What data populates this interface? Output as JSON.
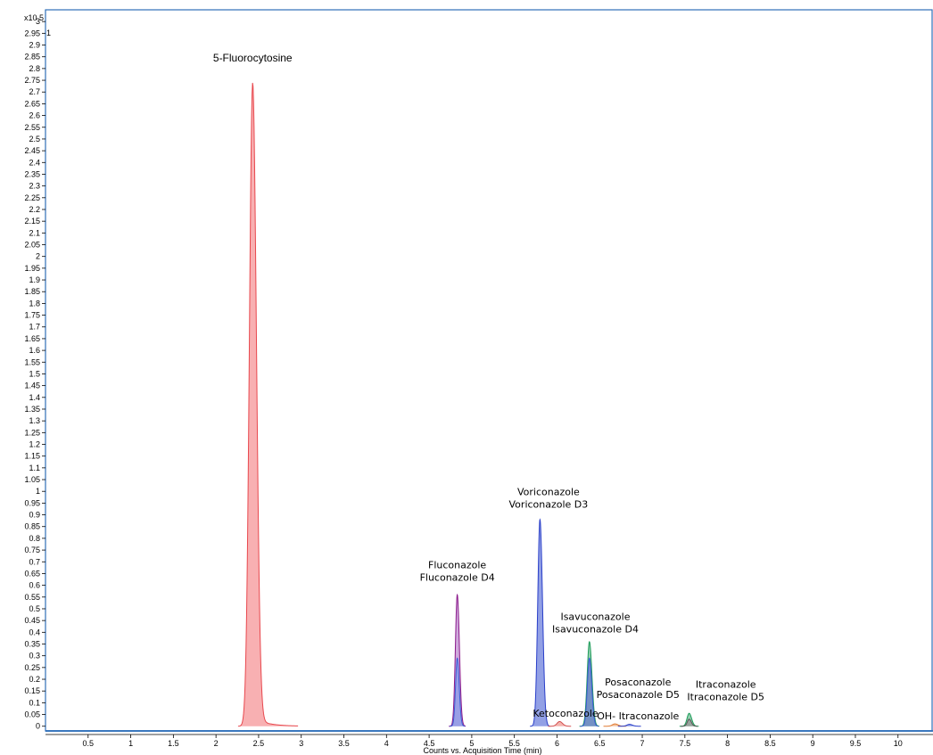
{
  "chart_data": {
    "type": "area",
    "xlabel": "Counts vs. Acquisition Time (min)",
    "ylabel": "",
    "y_multiplier_label": "x10 5",
    "y_corner_label": "1",
    "xlim": [
      0.0,
      10.4
    ],
    "ylim": [
      -0.02,
      3.05
    ],
    "x_ticks": [
      "0.5",
      "1",
      "1.5",
      "2",
      "2.5",
      "3",
      "3.5",
      "4",
      "4.5",
      "5",
      "5.5",
      "6",
      "6.5",
      "7",
      "7.5",
      "8",
      "8.5",
      "9",
      "9.5",
      "10"
    ],
    "y_ticks": [
      "0",
      "0.05",
      "0.1",
      "0.15",
      "0.2",
      "0.25",
      "0.3",
      "0.35",
      "0.4",
      "0.45",
      "0.5",
      "0.55",
      "0.6",
      "0.65",
      "0.7",
      "0.75",
      "0.8",
      "0.85",
      "0.9",
      "0.95",
      "1",
      "1.05",
      "1.1",
      "1.15",
      "1.2",
      "1.25",
      "1.3",
      "1.35",
      "1.4",
      "1.45",
      "1.5",
      "1.55",
      "1.6",
      "1.65",
      "1.7",
      "1.75",
      "1.8",
      "1.85",
      "1.9",
      "1.95",
      "2",
      "2.05",
      "2.1",
      "2.15",
      "2.2",
      "2.25",
      "2.3",
      "2.35",
      "2.4",
      "2.45",
      "2.5",
      "2.55",
      "2.6",
      "2.65",
      "2.7",
      "2.75",
      "2.8",
      "2.85",
      "2.9",
      "2.95",
      "3"
    ],
    "series": [
      {
        "color": "#e8484e",
        "fill": "#f7a2a4",
        "peaks": [
          {
            "rt": 2.43,
            "height": 2.74,
            "width": 0.038,
            "tail": 0.04
          }
        ]
      },
      {
        "color": "#8b1a8b",
        "fill": "#c79ad6",
        "peaks": [
          {
            "rt": 4.83,
            "height": 0.56,
            "width": 0.022,
            "tail": 0.0
          }
        ]
      },
      {
        "color": "#3b5bd6",
        "fill": "#8f9de8",
        "peaks": [
          {
            "rt": 4.83,
            "height": 0.29,
            "width": 0.02,
            "tail": 0.0
          }
        ]
      },
      {
        "color": "#2a3fc9",
        "fill": "#7f8fe0",
        "peaks": [
          {
            "rt": 5.8,
            "height": 0.88,
            "width": 0.026,
            "tail": 0.0
          }
        ]
      },
      {
        "color": "#d24f4f",
        "fill": "#f2a7a0",
        "peaks": [
          {
            "rt": 6.03,
            "height": 0.02,
            "width": 0.03,
            "tail": 0.0
          }
        ]
      },
      {
        "color": "#1e9c5a",
        "fill": "#7fc5a0",
        "peaks": [
          {
            "rt": 6.38,
            "height": 0.36,
            "width": 0.026,
            "tail": 0.0
          }
        ]
      },
      {
        "color": "#3b5bd6",
        "fill": "#6f86c8",
        "peaks": [
          {
            "rt": 6.38,
            "height": 0.29,
            "width": 0.024,
            "tail": 0.0
          }
        ]
      },
      {
        "color": "#e07b33",
        "fill": "#f3b98e",
        "peaks": [
          {
            "rt": 6.68,
            "height": 0.01,
            "width": 0.03,
            "tail": 0.0
          }
        ]
      },
      {
        "color": "#2a3fc9",
        "fill": "#7f8fe0",
        "peaks": [
          {
            "rt": 6.85,
            "height": 0.008,
            "width": 0.03,
            "tail": 0.0
          }
        ]
      },
      {
        "color": "#1e9c5a",
        "fill": "#7fc5a0",
        "peaks": [
          {
            "rt": 7.55,
            "height": 0.055,
            "width": 0.025,
            "tail": 0.0
          }
        ]
      },
      {
        "color": "#555555",
        "fill": "#9a9a9a",
        "peaks": [
          {
            "rt": 7.55,
            "height": 0.03,
            "width": 0.022,
            "tail": 0.0
          }
        ]
      }
    ],
    "annotations": [
      {
        "lines": [
          "5-Fluorocytosine"
        ],
        "x": 2.43,
        "y": 2.83,
        "big": true
      },
      {
        "lines": [
          "Fluconazole",
          "Fluconazole D4"
        ],
        "x": 4.83,
        "y": 0.62
      },
      {
        "lines": [
          "Voriconazole",
          "Voriconazole D3"
        ],
        "x": 5.9,
        "y": 0.93
      },
      {
        "lines": [
          "Isavuconazole",
          "Isavuconazole D4"
        ],
        "x": 6.45,
        "y": 0.4
      },
      {
        "lines": [
          "Ketoconazole"
        ],
        "x": 6.1,
        "y": 0.04
      },
      {
        "lines": [
          "Posaconazole",
          "Posaconazole D5"
        ],
        "x": 6.95,
        "y": 0.12
      },
      {
        "lines": [
          "OH- Itraconazole"
        ],
        "x": 6.95,
        "y": 0.03
      },
      {
        "lines": [
          "Itraconazole",
          "Itraconazole D5"
        ],
        "x": 7.98,
        "y": 0.11
      }
    ]
  }
}
